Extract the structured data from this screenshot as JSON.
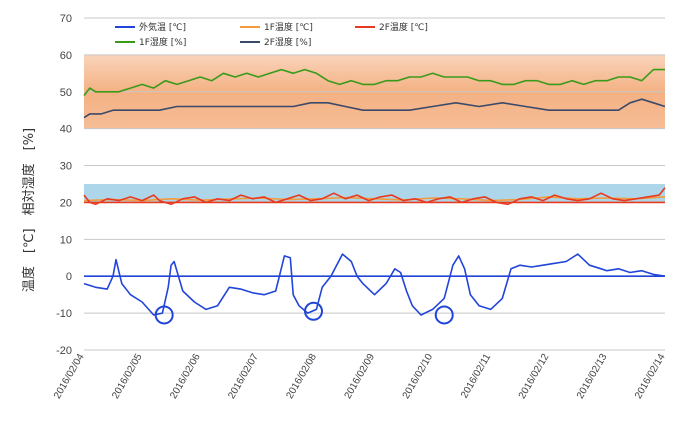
{
  "chart_data": {
    "type": "line",
    "ylabel": "温度　[℃]　相対湿度　[%]",
    "ylim": [
      -20,
      70
    ],
    "yticks": [
      "-20",
      "-10",
      "0",
      "10",
      "20",
      "30",
      "40",
      "50",
      "60",
      "70"
    ],
    "xlim": [
      "2016/02/04",
      "2016/02/14"
    ],
    "xticks": [
      "2016/02/04",
      "2016/02/05",
      "2016/02/06",
      "2016/02/07",
      "2016/02/08",
      "2016/02/09",
      "2016/02/10",
      "2016/02/11",
      "2016/02/12",
      "2016/02/13",
      "2016/02/14"
    ],
    "grid": true,
    "legend": [
      {
        "label": "外気温 [℃]",
        "color": "#2145d8"
      },
      {
        "label": "1F温度 [℃]",
        "color": "#f39a3c"
      },
      {
        "label": "2F温度 [℃]",
        "color": "#e83a1e"
      },
      {
        "label": "1F湿度 [%]",
        "color": "#3a9a1a"
      },
      {
        "label": "2F湿度 [%]",
        "color": "#3b4a6a"
      }
    ],
    "bands": [
      {
        "from": 40,
        "to": 60,
        "color": "#f4b183"
      },
      {
        "from": 20,
        "to": 25,
        "color": "#9fcfe6"
      }
    ],
    "hlines": [
      {
        "y": 0,
        "color": "#2145d8"
      },
      {
        "y": 20,
        "color": "#e83a1e"
      }
    ],
    "markers": [
      {
        "x": 1.38,
        "y": -10.5
      },
      {
        "x": 3.95,
        "y": -9.5
      },
      {
        "x": 6.2,
        "y": -10.5
      }
    ],
    "series": [
      {
        "name": "外気温 [℃]",
        "color": "#2145d8",
        "x": [
          0,
          0.2,
          0.4,
          0.5,
          0.55,
          0.65,
          0.8,
          1.0,
          1.2,
          1.35,
          1.45,
          1.5,
          1.55,
          1.7,
          1.9,
          2.1,
          2.3,
          2.5,
          2.7,
          2.9,
          3.1,
          3.3,
          3.45,
          3.55,
          3.6,
          3.7,
          3.85,
          4.0,
          4.1,
          4.25,
          4.45,
          4.6,
          4.7,
          4.8,
          5.0,
          5.2,
          5.35,
          5.45,
          5.55,
          5.65,
          5.8,
          6.0,
          6.2,
          6.35,
          6.45,
          6.55,
          6.65,
          6.8,
          7.0,
          7.2,
          7.35,
          7.5,
          7.7,
          7.9,
          8.1,
          8.3,
          8.5,
          8.7,
          8.9,
          9.0,
          9.2,
          9.4,
          9.6,
          9.8,
          10.0
        ],
        "values": [
          -2,
          -3,
          -3.5,
          0,
          4.5,
          -2,
          -5,
          -7,
          -10.5,
          -10,
          -3,
          3,
          4,
          -4,
          -7,
          -9,
          -8,
          -3,
          -3.5,
          -4.5,
          -5,
          -4,
          5.5,
          5,
          -5,
          -8,
          -10,
          -9,
          -3,
          0,
          6,
          4,
          0,
          -2,
          -5,
          -2,
          2,
          1,
          -4,
          -8,
          -10.5,
          -9,
          -6,
          3,
          5.5,
          2,
          -5,
          -8,
          -9,
          -6,
          2,
          3,
          2.5,
          3,
          3.5,
          4,
          6,
          3,
          2,
          1.5,
          2,
          1,
          1.5,
          0.5,
          0
        ]
      },
      {
        "name": "1F温度 [℃]",
        "color": "#f39a3c",
        "x": [
          0,
          0.5,
          1,
          1.5,
          2,
          2.5,
          3,
          3.5,
          4,
          4.5,
          5,
          5.5,
          6,
          6.5,
          7,
          7.5,
          8,
          8.5,
          9,
          9.5,
          10
        ],
        "values": [
          20.5,
          20.8,
          20.5,
          21,
          20.6,
          20.9,
          21.2,
          20.8,
          21,
          21.3,
          21,
          20.7,
          21.2,
          21,
          20.5,
          20.8,
          21.5,
          21,
          21.2,
          21,
          21.5
        ]
      },
      {
        "name": "2F温度 [℃]",
        "color": "#e83a1e",
        "x": [
          0,
          0.1,
          0.2,
          0.4,
          0.6,
          0.8,
          1.0,
          1.2,
          1.3,
          1.5,
          1.7,
          1.9,
          2.1,
          2.3,
          2.5,
          2.7,
          2.9,
          3.1,
          3.3,
          3.5,
          3.7,
          3.9,
          4.1,
          4.3,
          4.5,
          4.7,
          4.9,
          5.1,
          5.3,
          5.5,
          5.7,
          5.9,
          6.1,
          6.3,
          6.5,
          6.7,
          6.9,
          7.1,
          7.3,
          7.5,
          7.7,
          7.9,
          8.1,
          8.3,
          8.5,
          8.7,
          8.9,
          9.1,
          9.3,
          9.5,
          9.7,
          9.9,
          10.0
        ],
        "values": [
          22,
          20,
          19.5,
          21,
          20.5,
          21.5,
          20.5,
          22,
          20.5,
          19.5,
          21,
          21.5,
          20,
          21,
          20.5,
          22,
          21,
          21.5,
          20,
          21,
          22,
          20.5,
          21,
          22.5,
          21,
          22,
          20.5,
          21.5,
          22,
          20.5,
          21,
          20,
          21,
          21.5,
          20,
          21,
          21.5,
          20,
          19.5,
          21,
          21.5,
          20.5,
          22,
          21,
          20.5,
          21,
          22.5,
          21,
          20.5,
          21,
          21.5,
          22,
          24
        ]
      },
      {
        "name": "1F湿度 [%]",
        "color": "#3a9a1a",
        "x": [
          0,
          0.1,
          0.2,
          0.4,
          0.6,
          0.8,
          1.0,
          1.2,
          1.4,
          1.6,
          1.8,
          2.0,
          2.2,
          2.4,
          2.6,
          2.8,
          3.0,
          3.2,
          3.4,
          3.6,
          3.8,
          4.0,
          4.2,
          4.4,
          4.6,
          4.8,
          5.0,
          5.2,
          5.4,
          5.6,
          5.8,
          6.0,
          6.2,
          6.4,
          6.6,
          6.8,
          7.0,
          7.2,
          7.4,
          7.6,
          7.8,
          8.0,
          8.2,
          8.4,
          8.6,
          8.8,
          9.0,
          9.2,
          9.4,
          9.6,
          9.8,
          10.0
        ],
        "values": [
          49,
          51,
          50,
          50,
          50,
          51,
          52,
          51,
          53,
          52,
          53,
          54,
          53,
          55,
          54,
          55,
          54,
          55,
          56,
          55,
          56,
          55,
          53,
          52,
          53,
          52,
          52,
          53,
          53,
          54,
          54,
          55,
          54,
          54,
          54,
          53,
          53,
          52,
          52,
          53,
          53,
          52,
          52,
          53,
          52,
          53,
          53,
          54,
          54,
          53,
          56,
          56
        ]
      },
      {
        "name": "2F湿度 [%]",
        "color": "#3b4a6a",
        "x": [
          0,
          0.1,
          0.3,
          0.5,
          0.7,
          1.0,
          1.3,
          1.6,
          2.0,
          2.4,
          2.8,
          3.2,
          3.6,
          3.9,
          4.2,
          4.5,
          4.8,
          5.2,
          5.6,
          6.0,
          6.4,
          6.8,
          7.2,
          7.6,
          8.0,
          8.4,
          8.8,
          9.2,
          9.4,
          9.6,
          9.8,
          10.0
        ],
        "values": [
          43,
          44,
          44,
          45,
          45,
          45,
          45,
          46,
          46,
          46,
          46,
          46,
          46,
          47,
          47,
          46,
          45,
          45,
          45,
          46,
          47,
          46,
          47,
          46,
          45,
          45,
          45,
          45,
          47,
          48,
          47,
          46
        ]
      }
    ]
  }
}
